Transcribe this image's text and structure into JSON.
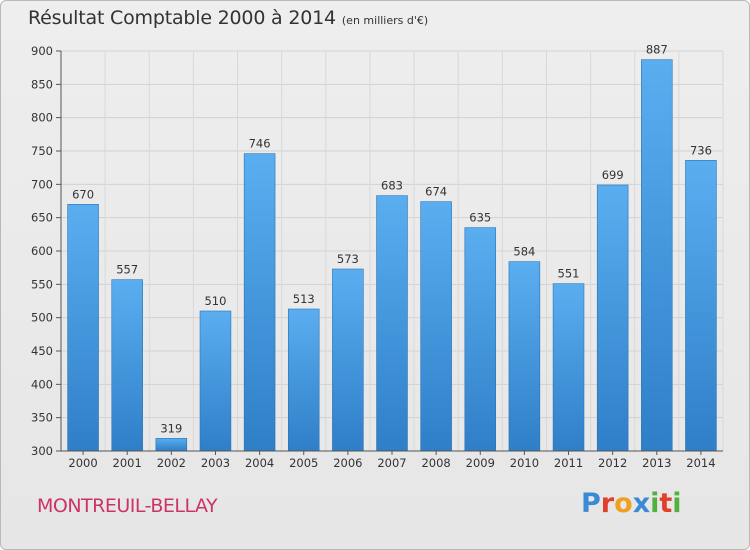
{
  "chart_data": {
    "type": "bar",
    "title": "Résultat Comptable 2000 à 2014",
    "subtitle": "(en milliers d'€)",
    "categories": [
      "2000",
      "2001",
      "2002",
      "2003",
      "2004",
      "2005",
      "2006",
      "2007",
      "2008",
      "2009",
      "2010",
      "2011",
      "2012",
      "2013",
      "2014"
    ],
    "values": [
      670,
      557,
      319,
      510,
      746,
      513,
      573,
      683,
      674,
      635,
      584,
      551,
      699,
      887,
      736
    ],
    "ylim": [
      300,
      900
    ],
    "yticks": [
      300,
      350,
      400,
      450,
      500,
      550,
      600,
      650,
      700,
      750,
      800,
      850,
      900
    ],
    "grid": true,
    "bar_color": "#4d9fe0",
    "xlabel": "",
    "ylabel": ""
  },
  "footer": {
    "commune": "MONTREUIL-BELLAY",
    "brand": "Proxiti",
    "brand_colors": [
      "#3a8ad6",
      "#e0402a",
      "#f0a020",
      "#3a8ad6",
      "#50b040",
      "#e0402a",
      "#50b040"
    ]
  }
}
